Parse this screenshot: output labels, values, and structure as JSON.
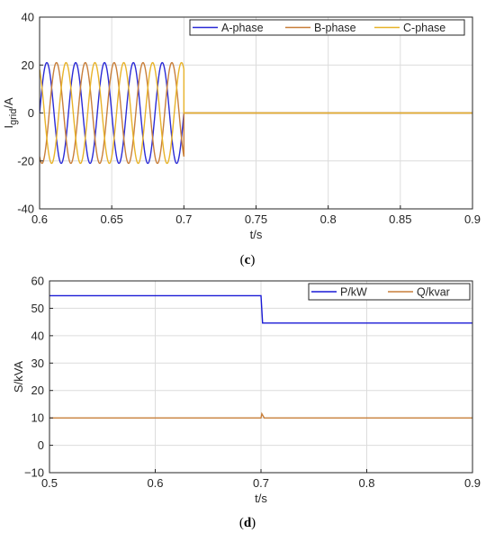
{
  "captions": {
    "c": "c",
    "d": "d"
  },
  "chart_data": [
    {
      "type": "line",
      "panel": "c",
      "xlabel": "t/s",
      "ylabel": "I",
      "ylabel_sub": "grid",
      "ylabel_unit": "/A",
      "xlim": [
        0.6,
        0.9
      ],
      "ylim": [
        -40,
        40
      ],
      "xticks": [
        0.6,
        0.65,
        0.7,
        0.75,
        0.8,
        0.85,
        0.9
      ],
      "xtick_labels": [
        "0.6",
        "0.65",
        "0.7",
        "0.75",
        "0.8",
        "0.85",
        "0.9"
      ],
      "yticks": [
        -40,
        -20,
        0,
        20,
        40
      ],
      "ytick_labels": [
        "-40",
        "-20",
        "0",
        "20",
        "40"
      ],
      "grid": true,
      "legend": {
        "position": "top-right",
        "orientation": "horizontal"
      },
      "signal": {
        "amplitude": 21,
        "frequency_hz": 50,
        "end_time": 0.7,
        "after_end_value": 0
      },
      "series": [
        {
          "name": "A-phase",
          "color": "#2b2bd6",
          "phase_deg": 0
        },
        {
          "name": "B-phase",
          "color": "#c87f3a",
          "phase_deg": -120
        },
        {
          "name": "C-phase",
          "color": "#e8b32a",
          "phase_deg": 120
        }
      ]
    },
    {
      "type": "line",
      "panel": "d",
      "xlabel": "t/s",
      "ylabel": "S/kVA",
      "xlim": [
        0.5,
        0.9
      ],
      "ylim": [
        -10,
        60
      ],
      "xticks": [
        0.5,
        0.6,
        0.7,
        0.8,
        0.9
      ],
      "xtick_labels": [
        "0.5",
        "0.6",
        "0.7",
        "0.8",
        "0.9"
      ],
      "yticks": [
        -10,
        0,
        10,
        20,
        30,
        40,
        50,
        60
      ],
      "ytick_labels": [
        "−10",
        "0",
        "10",
        "20",
        "30",
        "40",
        "50",
        "60"
      ],
      "grid": true,
      "legend": {
        "position": "top-right",
        "orientation": "horizontal"
      },
      "series": [
        {
          "name": "P/kW",
          "color": "#1a1ad6",
          "x": [
            0.5,
            0.7,
            0.7015,
            0.9
          ],
          "y": [
            54.6,
            54.6,
            44.6,
            44.6
          ]
        },
        {
          "name": "Q/kvar",
          "color": "#c87f3a",
          "x": [
            0.5,
            0.7,
            0.7008,
            0.703,
            0.9
          ],
          "y": [
            10,
            10,
            11.5,
            10,
            10
          ]
        }
      ]
    }
  ]
}
